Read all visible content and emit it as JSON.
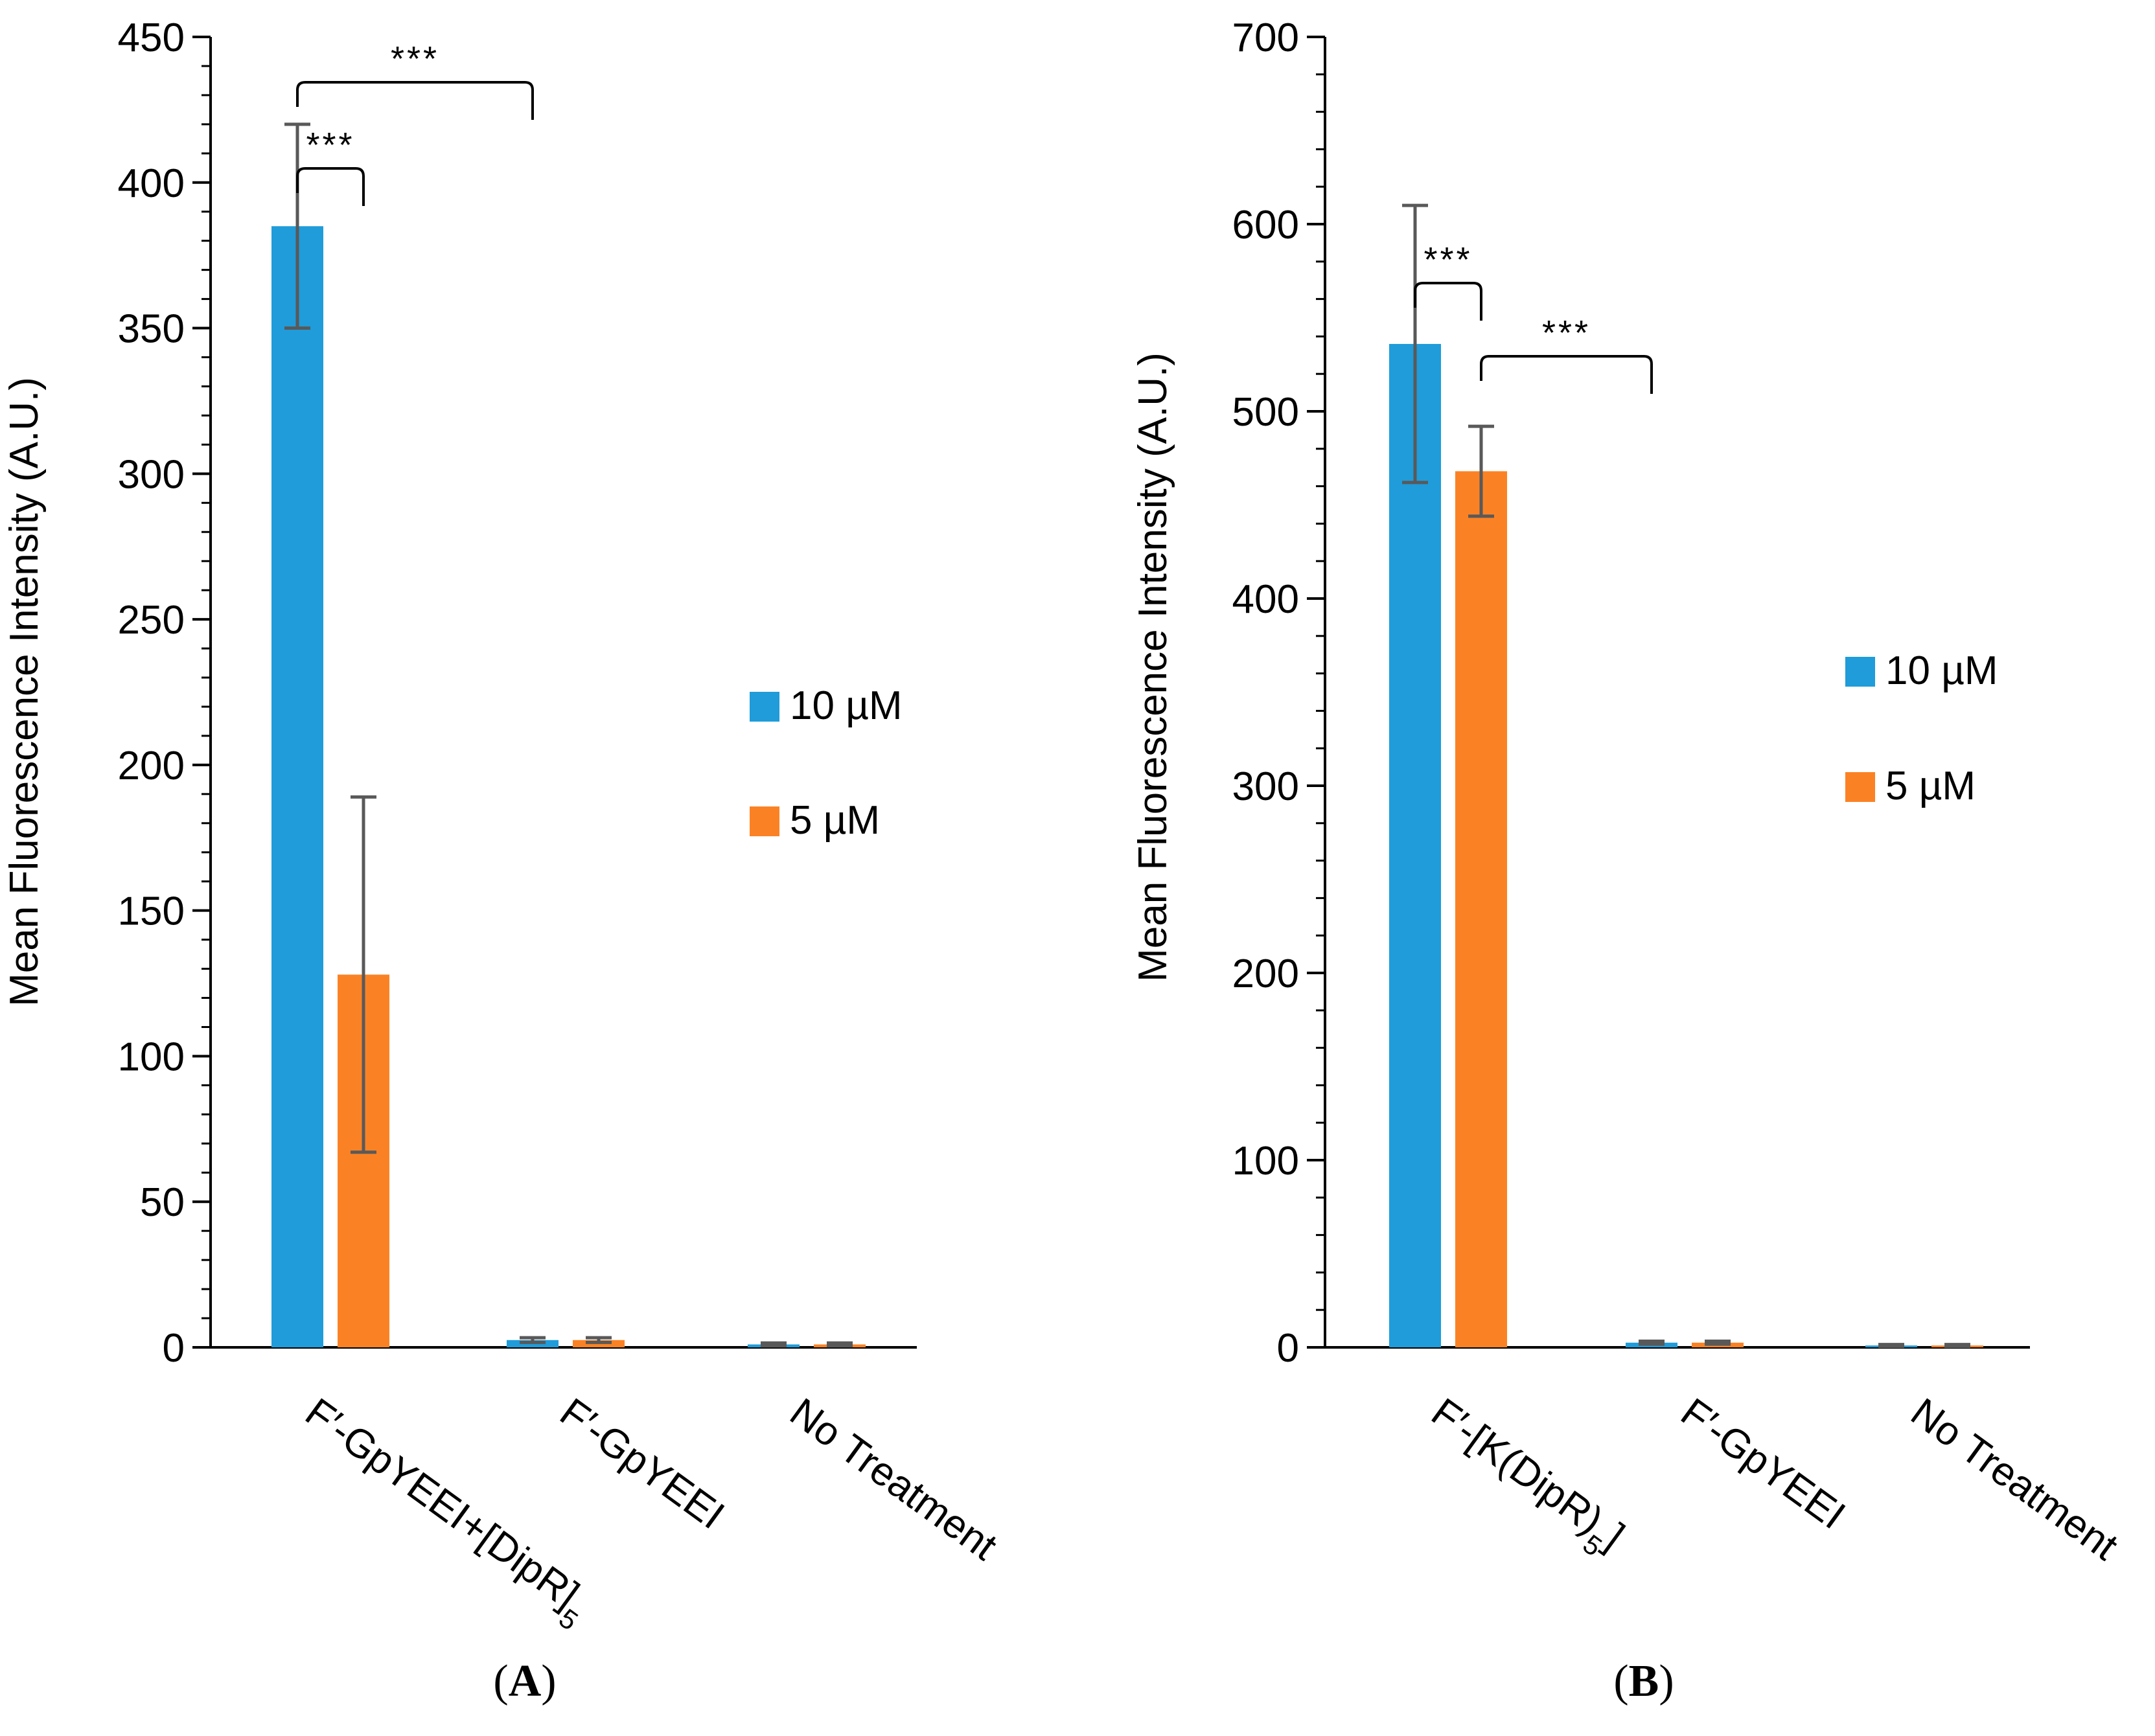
{
  "colors": {
    "series_10uM": "#1F9CD9",
    "series_5uM": "#FB8224",
    "error_bar": "#595959",
    "axis": "#000000"
  },
  "chart_data": [
    {
      "type": "bar",
      "panel": "A",
      "panel_label": "A",
      "ylabel": "Mean Fluorescence Intensity (A.U.)",
      "xlabel": "",
      "ylim": [
        0,
        450
      ],
      "yticks": [
        0,
        50,
        100,
        150,
        200,
        250,
        300,
        350,
        400,
        450
      ],
      "minor_tick_step": 10,
      "categories": [
        {
          "main": "F′-GpYEEI+[DipR]",
          "sub": "5"
        },
        {
          "main": "F′-GpYEEI",
          "sub": ""
        },
        {
          "main": "No Treatment",
          "sub": ""
        }
      ],
      "series": [
        {
          "name": "10 µM",
          "values": [
            385,
            2.5,
            1
          ],
          "errors": [
            35,
            0.8,
            0.5
          ]
        },
        {
          "name": "5 µM",
          "values": [
            128,
            2.5,
            1
          ],
          "errors": [
            61,
            0.8,
            0.5
          ]
        }
      ],
      "significance": [
        {
          "label": "***",
          "from": [
            0,
            0
          ],
          "to": [
            0,
            1
          ],
          "level": 1
        },
        {
          "label": "***",
          "from": [
            0,
            0
          ],
          "to": [
            1,
            0
          ],
          "level": 2
        }
      ],
      "legend_position": "right"
    },
    {
      "type": "bar",
      "panel": "B",
      "panel_label": "B",
      "ylabel": "Mean Fluorescence Intensity (A.U.)",
      "xlabel": "",
      "ylim": [
        0,
        700
      ],
      "yticks": [
        0,
        100,
        200,
        300,
        400,
        500,
        600,
        700
      ],
      "minor_tick_step": 20,
      "categories": [
        {
          "main": "F′-[K(DipR)",
          "sub": "5",
          "tail": "]"
        },
        {
          "main": "F′-GpYEEI",
          "sub": ""
        },
        {
          "main": "No Treatment",
          "sub": ""
        }
      ],
      "series": [
        {
          "name": "10 µM",
          "values": [
            536,
            2.5,
            1
          ],
          "errors": [
            74,
            0.8,
            0.5
          ]
        },
        {
          "name": "5 µM",
          "values": [
            468,
            2.5,
            1
          ],
          "errors": [
            24,
            0.8,
            0.5
          ]
        }
      ],
      "significance": [
        {
          "label": "***",
          "from": [
            0,
            0
          ],
          "to": [
            0,
            1
          ],
          "level": 1
        },
        {
          "label": "***",
          "from": [
            0,
            1
          ],
          "to": [
            1,
            0
          ],
          "level": 1
        }
      ],
      "legend_position": "right"
    }
  ]
}
